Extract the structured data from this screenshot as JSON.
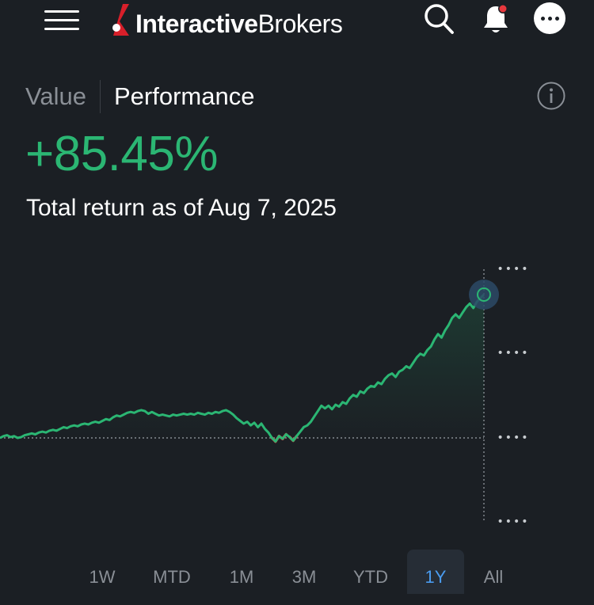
{
  "header": {
    "brand_bold": "Interactive",
    "brand_regular": "Brokers",
    "menu_icon": "hamburger-menu-icon",
    "search_icon": "search-icon",
    "bell_icon": "notification-bell-icon",
    "more_icon": "more-options-icon",
    "notification_dot_color": "#e8383d"
  },
  "tabs": [
    {
      "label": "Value",
      "active": false
    },
    {
      "label": "Performance",
      "active": true
    }
  ],
  "info_icon": "info-icon",
  "performance": {
    "value": "+85.45%",
    "caption": "Total return as of Aug 7, 2025",
    "positive_color": "#2bb673",
    "negative_color": "#e8383d"
  },
  "chart_data": {
    "type": "line",
    "title": "",
    "xlabel": "",
    "ylabel": "",
    "y_tick_labels": [
      "••••",
      "••••",
      "••••",
      "••••"
    ],
    "baseline": 0,
    "series": [
      {
        "values": [
          0,
          2,
          3,
          1,
          2,
          0,
          1,
          3,
          4,
          5,
          4,
          6,
          7,
          6,
          8,
          9,
          8,
          10,
          12,
          11,
          13,
          14,
          13,
          15,
          16,
          15,
          17,
          18,
          17,
          19,
          21,
          20,
          23,
          25,
          24,
          26,
          28,
          29,
          28,
          30,
          31,
          30,
          27,
          29,
          27,
          25,
          26,
          25,
          24,
          26,
          25,
          26,
          27,
          26,
          27,
          26,
          28,
          27,
          26,
          28,
          27,
          29,
          28,
          30,
          31,
          29,
          26,
          22,
          19,
          16,
          18,
          14,
          17,
          12,
          16,
          10,
          6,
          0,
          -4,
          2,
          -1,
          4,
          1,
          -3,
          2,
          7,
          12,
          14,
          18,
          24,
          30,
          36,
          33,
          36,
          32,
          37,
          35,
          40,
          38,
          44,
          48,
          46,
          52,
          50,
          55,
          58,
          57,
          62,
          60,
          66,
          70,
          72,
          68,
          74,
          76,
          80,
          78,
          84,
          90,
          94,
          92,
          98,
          102,
          110,
          116,
          112,
          120,
          126,
          134,
          138,
          134,
          140,
          146,
          150,
          145,
          152,
          156,
          160
        ]
      }
    ],
    "highlight_last_point": true,
    "grid": false
  },
  "ranges": [
    {
      "label": "1W",
      "active": false
    },
    {
      "label": "MTD",
      "active": false
    },
    {
      "label": "1M",
      "active": false
    },
    {
      "label": "3M",
      "active": false
    },
    {
      "label": "YTD",
      "active": false
    },
    {
      "label": "1Y",
      "active": true
    },
    {
      "label": "All",
      "active": false
    }
  ]
}
